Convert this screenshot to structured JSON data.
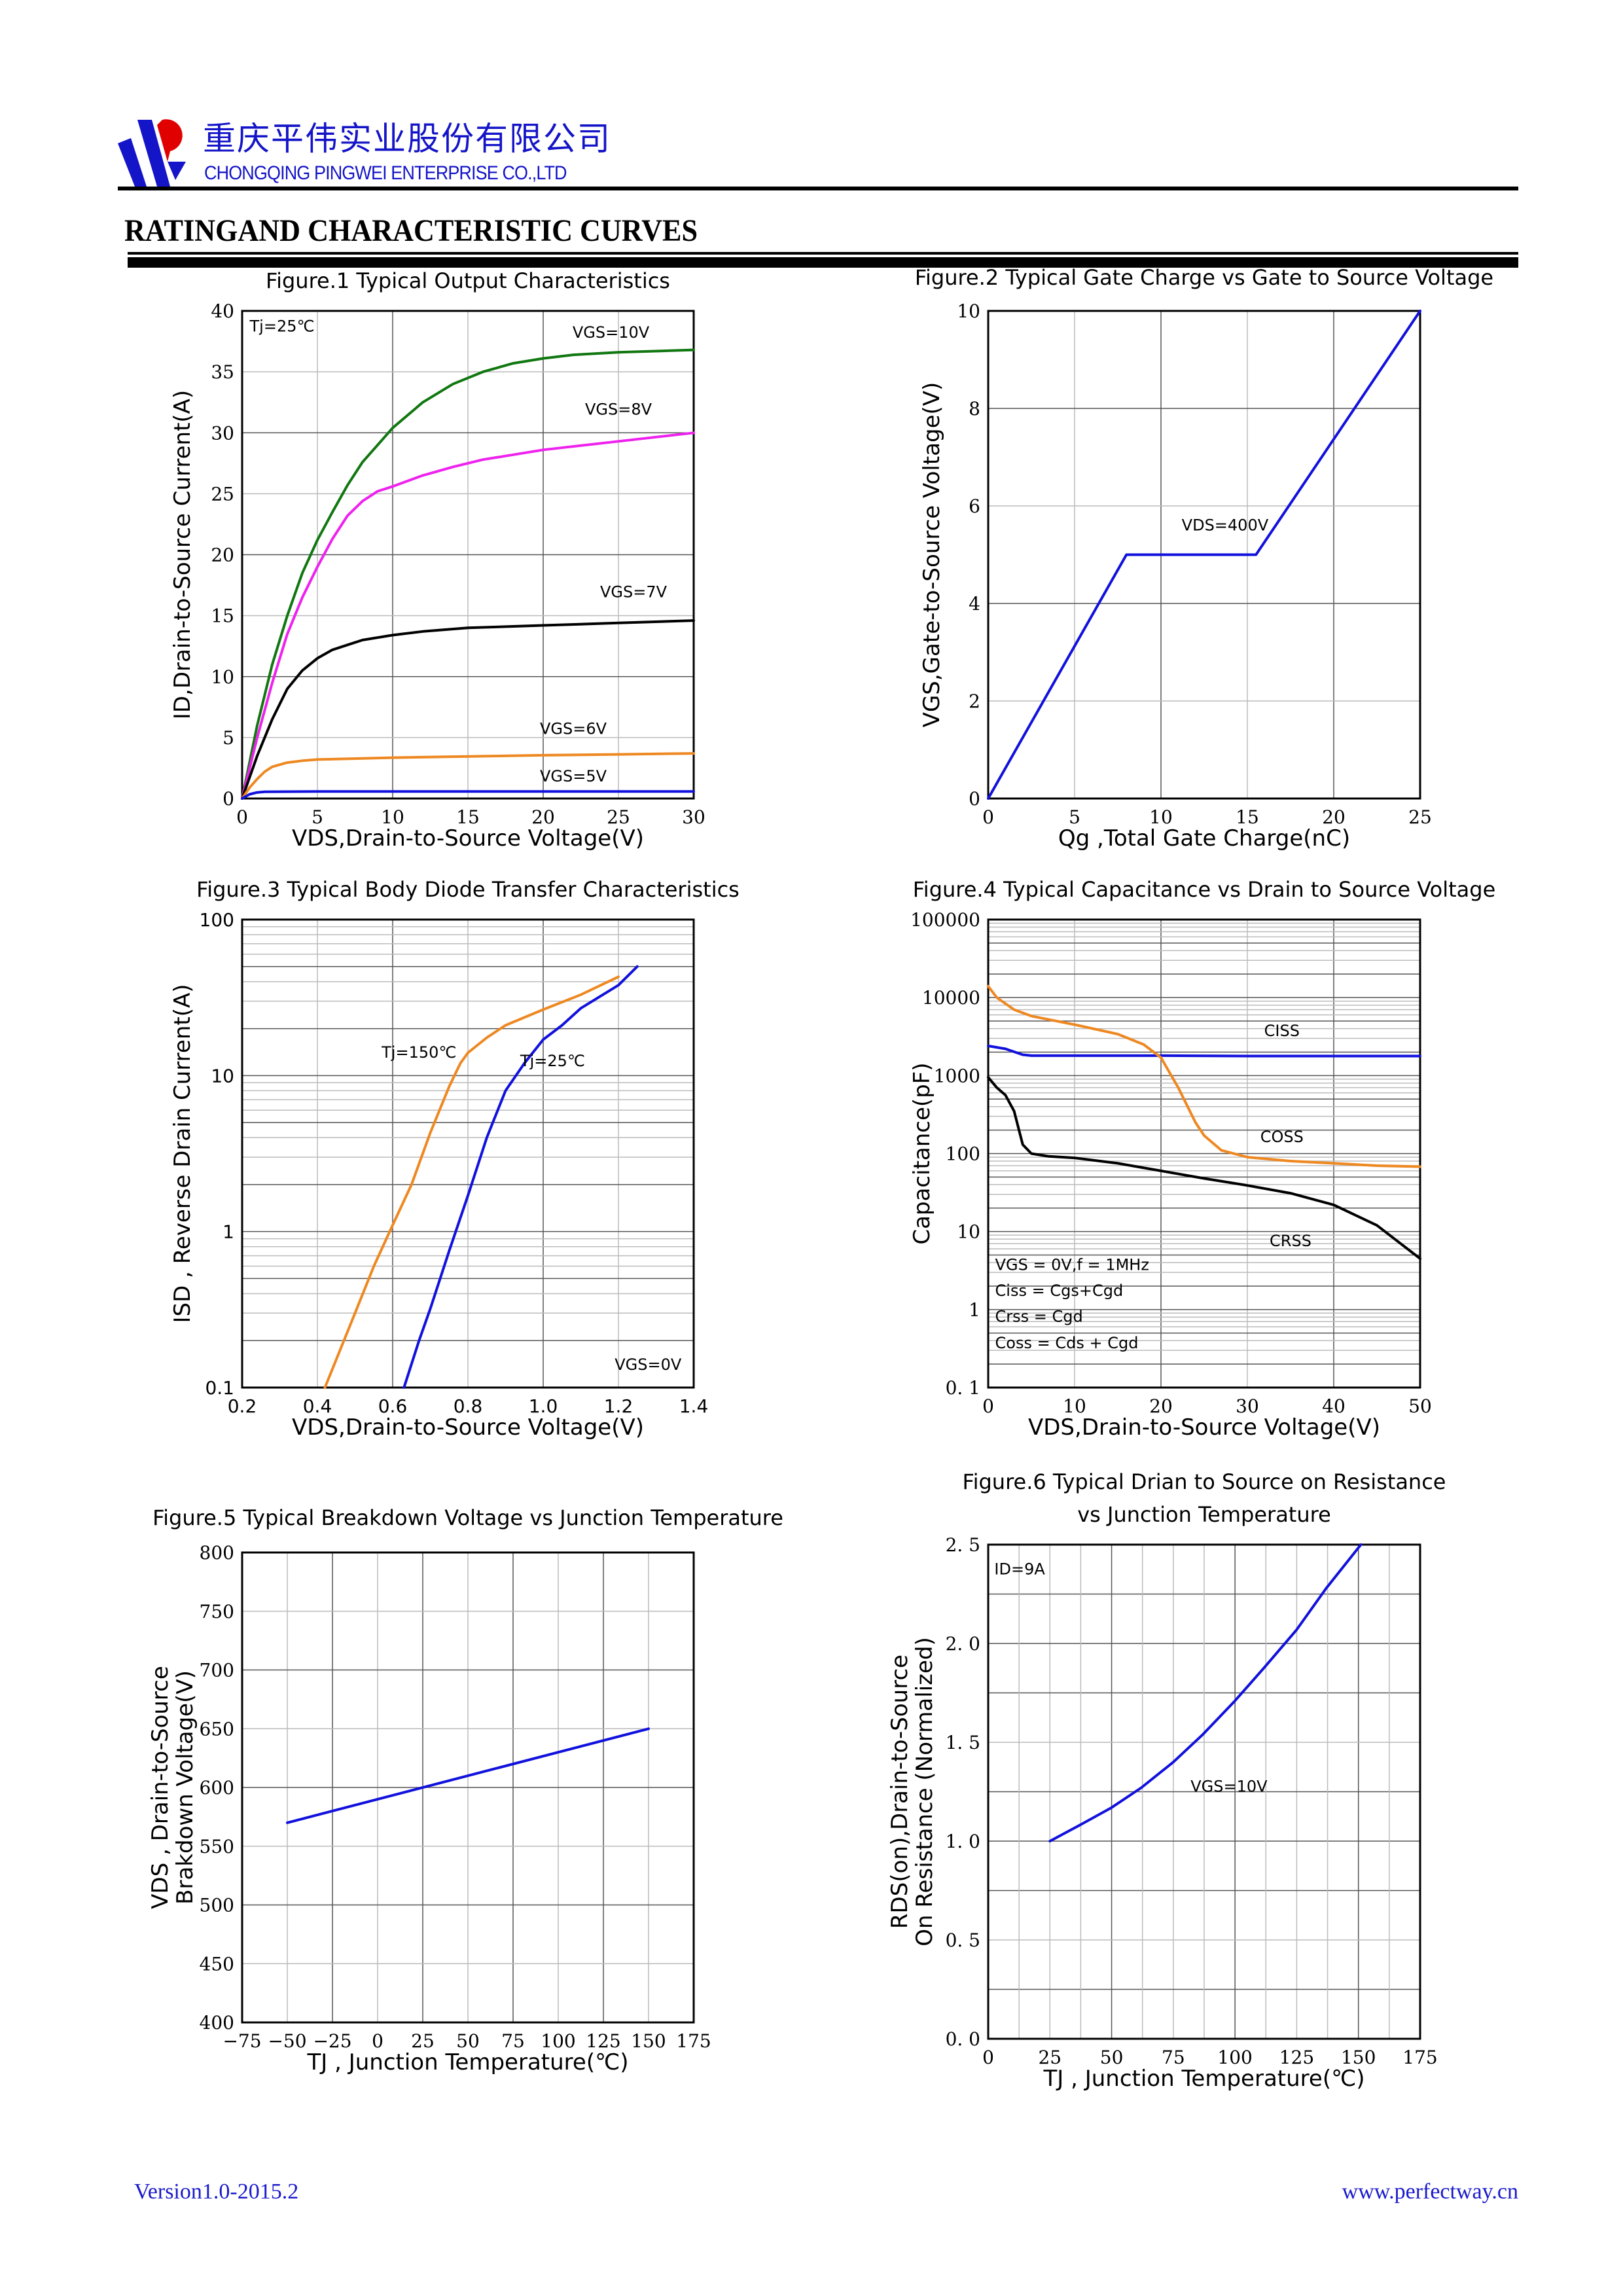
{
  "header": {
    "company_cn": "重庆平伟实业股份有限公司",
    "company_en": "CHONGQING PINGWEI ENTERPRISE CO.,LTD",
    "section_title": "RATINGAND CHARACTERISTIC CURVES",
    "logo": "pingwei-logo-icon",
    "colors": {
      "brand_blue": "#1414c8",
      "brand_red": "#e00000"
    }
  },
  "footer": {
    "version": "Version1.0-2015.2",
    "website": "www.perfectway.cn"
  },
  "chart_data": [
    {
      "id": "fig1",
      "type": "line",
      "title": "Figure.1 Typical Output Characteristics",
      "xlabel": "VDS,Drain-to-Source Voltage(V)",
      "ylabel": "ID,Drain-to-Source Current(A)",
      "xlim": [
        0,
        30
      ],
      "ylim": [
        0,
        40
      ],
      "xticks": [
        0,
        5,
        10,
        15,
        20,
        25,
        30
      ],
      "yticks": [
        0,
        5,
        10,
        15,
        20,
        25,
        30,
        35,
        40
      ],
      "grid": true,
      "annotations": [
        {
          "text": "Tj=25℃",
          "x": 0.5,
          "y": 38.3
        }
      ],
      "series": [
        {
          "name": "VGS=10V",
          "color": "#117711",
          "label_at": [
            24.5,
            37.8
          ],
          "points": [
            [
              0,
              0
            ],
            [
              1,
              6
            ],
            [
              2,
              11
            ],
            [
              3,
              15
            ],
            [
              4,
              18.5
            ],
            [
              5,
              21.2
            ],
            [
              6,
              23.5
            ],
            [
              7,
              25.7
            ],
            [
              8,
              27.6
            ],
            [
              9,
              29
            ],
            [
              10,
              30.4
            ],
            [
              12,
              32.5
            ],
            [
              14,
              34
            ],
            [
              16,
              35
            ],
            [
              18,
              35.7
            ],
            [
              20,
              36.1
            ],
            [
              22,
              36.4
            ],
            [
              25,
              36.6
            ],
            [
              30,
              36.8
            ]
          ]
        },
        {
          "name": "VGS=8V",
          "color": "#ee22ee",
          "label_at": [
            25,
            31.5
          ],
          "points": [
            [
              0,
              0
            ],
            [
              1,
              5
            ],
            [
              2,
              9.5
            ],
            [
              3,
              13.5
            ],
            [
              4,
              16.5
            ],
            [
              5,
              19
            ],
            [
              6,
              21.3
            ],
            [
              7,
              23.2
            ],
            [
              8,
              24.4
            ],
            [
              9,
              25.2
            ],
            [
              10,
              25.6
            ],
            [
              12,
              26.5
            ],
            [
              14,
              27.2
            ],
            [
              16,
              27.8
            ],
            [
              18,
              28.2
            ],
            [
              20,
              28.6
            ],
            [
              25,
              29.3
            ],
            [
              30,
              30
            ]
          ]
        },
        {
          "name": "VGS=7V",
          "color": "#000000",
          "label_at": [
            26,
            16.5
          ],
          "points": [
            [
              0,
              0
            ],
            [
              1,
              3.5
            ],
            [
              2,
              6.5
            ],
            [
              3,
              9
            ],
            [
              4,
              10.5
            ],
            [
              5,
              11.5
            ],
            [
              6,
              12.2
            ],
            [
              7,
              12.6
            ],
            [
              8,
              13
            ],
            [
              10,
              13.4
            ],
            [
              12,
              13.7
            ],
            [
              15,
              14
            ],
            [
              20,
              14.2
            ],
            [
              25,
              14.4
            ],
            [
              30,
              14.6
            ]
          ]
        },
        {
          "name": "VGS=6V",
          "color": "#ee8822",
          "label_at": [
            22,
            5.3
          ],
          "points": [
            [
              0,
              0
            ],
            [
              0.5,
              0.9
            ],
            [
              1,
              1.6
            ],
            [
              1.5,
              2.2
            ],
            [
              2,
              2.6
            ],
            [
              3,
              2.95
            ],
            [
              4,
              3.1
            ],
            [
              5,
              3.2
            ],
            [
              10,
              3.35
            ],
            [
              15,
              3.45
            ],
            [
              20,
              3.55
            ],
            [
              25,
              3.62
            ],
            [
              30,
              3.7
            ]
          ]
        },
        {
          "name": "VGS=5V",
          "color": "#1111dd",
          "label_at": [
            22,
            1.4
          ],
          "points": [
            [
              0,
              0
            ],
            [
              0.5,
              0.35
            ],
            [
              1,
              0.5
            ],
            [
              1.5,
              0.55
            ],
            [
              5,
              0.58
            ],
            [
              10,
              0.58
            ],
            [
              20,
              0.58
            ],
            [
              30,
              0.58
            ]
          ]
        }
      ]
    },
    {
      "id": "fig2",
      "type": "line",
      "title": "Figure.2 Typical Gate Charge vs Gate to Source Voltage",
      "xlabel": "Qg ,Total Gate Charge(nC)",
      "ylabel": "VGS,Gate-to-Source Voltage(V)",
      "xlim": [
        0,
        25
      ],
      "ylim": [
        0,
        10
      ],
      "xticks": [
        0,
        5,
        10,
        15,
        20,
        25
      ],
      "yticks": [
        0,
        2,
        4,
        6,
        8,
        10
      ],
      "grid": true,
      "annotations": [
        {
          "text": "VDS=400V",
          "x": 11.2,
          "y": 5.5
        }
      ],
      "series": [
        {
          "name": "VDS=400V",
          "color": "#1111dd",
          "points": [
            [
              0,
              0
            ],
            [
              8,
              5
            ],
            [
              15.5,
              5
            ],
            [
              25,
              10
            ]
          ]
        }
      ]
    },
    {
      "id": "fig3",
      "type": "line",
      "title": "Figure.3 Typical Body Diode Transfer Characteristics",
      "xlabel": "VDS,Drain-to-Source Voltage(V)",
      "ylabel": "ISD , Reverse Drain Current(A)",
      "xlim": [
        0.2,
        1.4
      ],
      "ylim": [
        0.1,
        100
      ],
      "yscale": "log",
      "xticks": [
        "0.2",
        "0.4",
        "0.6",
        "0.8",
        "1.0",
        "1.2",
        "1.4"
      ],
      "yticks": [
        "0.1",
        "1",
        "10",
        "100"
      ],
      "grid": true,
      "annotations": [
        {
          "text": "VGS=0V",
          "x": 1.19,
          "y": 0.13
        }
      ],
      "series": [
        {
          "name": "Tj=150℃",
          "color": "#ee8822",
          "label_at": [
            0.67,
            13
          ],
          "points": [
            [
              0.42,
              0.1
            ],
            [
              0.5,
              0.3
            ],
            [
              0.55,
              0.6
            ],
            [
              0.6,
              1.1
            ],
            [
              0.65,
              2
            ],
            [
              0.7,
              4.3
            ],
            [
              0.75,
              8.5
            ],
            [
              0.78,
              12
            ],
            [
              0.8,
              14
            ],
            [
              0.85,
              17.5
            ],
            [
              0.9,
              21
            ],
            [
              1.0,
              26.5
            ],
            [
              1.1,
              33
            ],
            [
              1.2,
              43
            ]
          ]
        },
        {
          "name": "Tj=25℃",
          "color": "#1111dd",
          "label_at": [
            1.025,
            11.5
          ],
          "points": [
            [
              0.63,
              0.1
            ],
            [
              0.67,
              0.2
            ],
            [
              0.7,
              0.32
            ],
            [
              0.75,
              0.75
            ],
            [
              0.8,
              1.7
            ],
            [
              0.85,
              4
            ],
            [
              0.9,
              8
            ],
            [
              0.95,
              12
            ],
            [
              1.0,
              17
            ],
            [
              1.05,
              21
            ],
            [
              1.1,
              27
            ],
            [
              1.2,
              38
            ],
            [
              1.25,
              50
            ]
          ]
        }
      ]
    },
    {
      "id": "fig4",
      "type": "line",
      "title": "Figure.4 Typical Capacitance vs Drain to Source Voltage",
      "xlabel": "VDS,Drain-to-Source Voltage(V)",
      "ylabel": "Capacitance(pF)",
      "xlim": [
        0,
        50
      ],
      "ylim": [
        0.1,
        100000
      ],
      "yscale": "log",
      "xticks": [
        0,
        10,
        20,
        30,
        40,
        50
      ],
      "yticks": [
        "0. 1",
        "1",
        "10",
        "100",
        "1000",
        "10000",
        "100000"
      ],
      "grid": true,
      "annotations": [
        {
          "text": "VGS  = 0V,f = 1MHz",
          "x": 0.8,
          "y": 3.2
        },
        {
          "text": "Ciss = Cgs+Cgd",
          "x": 0.8,
          "y": 1.5
        },
        {
          "text": "Crss = Cgd",
          "x": 0.8,
          "y": 0.7
        },
        {
          "text": "Coss = Cds + Cgd",
          "x": 0.8,
          "y": 0.32
        }
      ],
      "series": [
        {
          "name": "CISS",
          "color": "#1111dd",
          "label_at": [
            34,
            3200
          ],
          "points": [
            [
              0,
              2400
            ],
            [
              2,
              2200
            ],
            [
              4,
              1850
            ],
            [
              5,
              1800
            ],
            [
              10,
              1800
            ],
            [
              20,
              1800
            ],
            [
              30,
              1780
            ],
            [
              40,
              1780
            ],
            [
              50,
              1780
            ]
          ]
        },
        {
          "name": "COSS",
          "color": "#ee8822",
          "label_at": [
            34,
            140
          ],
          "points": [
            [
              0,
              14000
            ],
            [
              1,
              10000
            ],
            [
              3,
              7000
            ],
            [
              5,
              5800
            ],
            [
              10,
              4500
            ],
            [
              15,
              3400
            ],
            [
              18,
              2500
            ],
            [
              20,
              1700
            ],
            [
              22,
              700
            ],
            [
              24,
              250
            ],
            [
              25,
              170
            ],
            [
              27,
              110
            ],
            [
              30,
              90
            ],
            [
              35,
              80
            ],
            [
              40,
              75
            ],
            [
              45,
              70
            ],
            [
              50,
              68
            ]
          ]
        },
        {
          "name": "CRSS",
          "color": "#000000",
          "label_at": [
            35,
            6.5
          ],
          "points": [
            [
              0,
              950
            ],
            [
              1,
              700
            ],
            [
              2,
              560
            ],
            [
              3,
              350
            ],
            [
              4,
              130
            ],
            [
              5,
              100
            ],
            [
              7,
              92
            ],
            [
              10,
              88
            ],
            [
              15,
              75
            ],
            [
              20,
              60
            ],
            [
              25,
              48
            ],
            [
              30,
              39
            ],
            [
              35,
              31
            ],
            [
              40,
              22
            ],
            [
              45,
              12
            ],
            [
              50,
              4.5
            ]
          ]
        }
      ]
    },
    {
      "id": "fig5",
      "type": "line",
      "title": "Figure.5 Typical Breakdown Voltage vs Junction Temperature",
      "xlabel": "TJ , Junction Temperature(℃)",
      "ylabel": [
        "VDS , Drain-to-Source",
        "Brakdown Voltage(V)"
      ],
      "xlim": [
        -75,
        175
      ],
      "ylim": [
        400,
        800
      ],
      "xticks": [
        "−75",
        "−50",
        "−25",
        "0",
        "25",
        "50",
        "75",
        "100",
        "125",
        "150",
        "175"
      ],
      "yticks": [
        400,
        450,
        500,
        550,
        600,
        650,
        700,
        750,
        800
      ],
      "grid": true,
      "series": [
        {
          "name": "BVDSS",
          "color": "#1111dd",
          "points": [
            [
              -50,
              570
            ],
            [
              150,
              650
            ]
          ]
        }
      ]
    },
    {
      "id": "fig6",
      "type": "line",
      "title": [
        "Figure.6 Typical Drian to Source on Resistance",
        "vs Junction Temperature"
      ],
      "xlabel": "TJ , Junction Temperature(℃)",
      "ylabel": [
        "RDS(on),Drain-to-Source",
        "On Resistance (Normalized)"
      ],
      "xlim": [
        0,
        175
      ],
      "ylim": [
        0,
        2.5
      ],
      "xticks": [
        0,
        25,
        50,
        75,
        100,
        125,
        150,
        175
      ],
      "yticks": [
        "0. 0",
        "0. 5",
        "1. 0",
        "1. 5",
        "2. 0",
        "2. 5"
      ],
      "grid": true,
      "annotations": [
        {
          "text": "ID=9A",
          "x": 2.5,
          "y": 2.35
        },
        {
          "text": "VGS=10V",
          "x": 82,
          "y": 1.25
        }
      ],
      "series": [
        {
          "name": "VGS=10V",
          "color": "#1111dd",
          "points": [
            [
              25,
              1.0
            ],
            [
              37,
              1.08
            ],
            [
              50,
              1.17
            ],
            [
              62,
              1.27
            ],
            [
              75,
              1.4
            ],
            [
              87,
              1.54
            ],
            [
              100,
              1.71
            ],
            [
              112,
              1.88
            ],
            [
              125,
              2.07
            ],
            [
              137,
              2.28
            ],
            [
              151,
              2.5
            ]
          ]
        }
      ]
    }
  ]
}
